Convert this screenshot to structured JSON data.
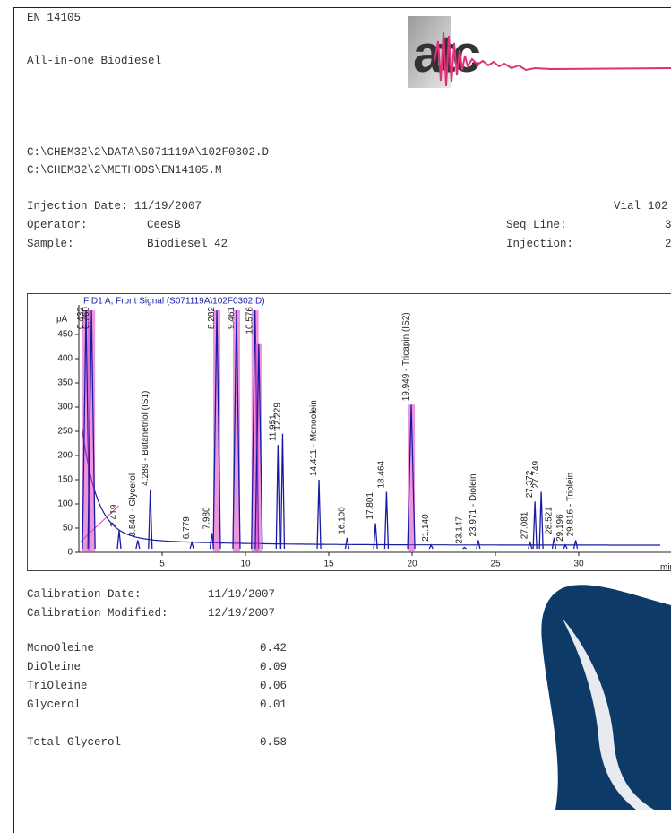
{
  "header": {
    "method": "EN 14105",
    "title": "All-in-one Biodiesel",
    "logo": "atc"
  },
  "files": [
    "C:\\CHEM32\\2\\DATA\\S071119A\\102F0302.D",
    "C:\\CHEM32\\2\\METHODS\\EN14105.M"
  ],
  "injection_info": {
    "left": [
      {
        "label": "Injection Date:",
        "value": "11/19/2007"
      },
      {
        "label": "Operator:",
        "value": "CeesB"
      },
      {
        "label": "Sample:",
        "value": "Biodiesel 42"
      }
    ],
    "right": [
      {
        "label": "Vial",
        "value": "102"
      },
      {
        "label": "Seq Line:",
        "value": "3"
      },
      {
        "label": "Injection:",
        "value": "2"
      }
    ]
  },
  "chromatogram": {
    "type": "chromatogram",
    "title": "FID1 A, Front Signal (S071119A\\102F0302.D)",
    "y_label": "pA",
    "x_label": "min",
    "color": "#1a1aa6",
    "xlim": [
      0,
      35
    ],
    "ylim": [
      0,
      500
    ],
    "xticks": [
      5,
      10,
      15,
      20,
      25,
      30
    ],
    "yticks": [
      0,
      50,
      100,
      150,
      200,
      250,
      300,
      350,
      400,
      450
    ],
    "peaks": [
      {
        "rt": 0.432,
        "height": 500,
        "label": "0.432"
      },
      {
        "rt": 0.76,
        "height": 500,
        "label": "0.760"
      },
      {
        "rt": 2.419,
        "height": 45,
        "label": "2.419"
      },
      {
        "rt": 3.54,
        "height": 25,
        "label": "3.540 - Glycerol"
      },
      {
        "rt": 4.289,
        "height": 130,
        "label": "4.289 - Butanetriol (IS1)"
      },
      {
        "rt": 6.779,
        "height": 20,
        "label": "6.779"
      },
      {
        "rt": 7.98,
        "height": 40,
        "label": "7.980"
      },
      {
        "rt": 8.282,
        "height": 500,
        "label": "8.282"
      },
      {
        "rt": 9.461,
        "height": 500,
        "label": "9.461"
      },
      {
        "rt": 10.576,
        "height": 500,
        "label": "10.576"
      },
      {
        "rt": 10.8,
        "height": 430,
        "label": null
      },
      {
        "rt": 11.951,
        "height": 222,
        "label": "11.951"
      },
      {
        "rt": 12.229,
        "height": 245,
        "label": "12.229"
      },
      {
        "rt": 14.411,
        "height": 150,
        "label": "14.411 - Monoolein"
      },
      {
        "rt": 16.1,
        "height": 30,
        "label": "16.100"
      },
      {
        "rt": 17.801,
        "height": 60,
        "label": "17.801"
      },
      {
        "rt": 18.464,
        "height": 125,
        "label": "18.464"
      },
      {
        "rt": 19.949,
        "height": 305,
        "label": "19.949 - Tricapin (IS2)"
      },
      {
        "rt": 21.14,
        "height": 15,
        "label": "21.140"
      },
      {
        "rt": 23.147,
        "height": 10,
        "label": "23.147"
      },
      {
        "rt": 23.971,
        "height": 25,
        "label": "23.971 - Diolein"
      },
      {
        "rt": 27.081,
        "height": 20,
        "label": "27.081"
      },
      {
        "rt": 27.372,
        "height": 105,
        "label": "27.372"
      },
      {
        "rt": 27.749,
        "height": 125,
        "label": "27.749"
      },
      {
        "rt": 28.521,
        "height": 30,
        "label": "28.521"
      },
      {
        "rt": 29.196,
        "height": 15,
        "label": "29.196"
      },
      {
        "rt": 29.816,
        "height": 25,
        "label": "29.816 - Triolein"
      }
    ]
  },
  "calibration": [
    {
      "label": "Calibration Date:",
      "value": "11/19/2007"
    },
    {
      "label": "Calibration Modified:",
      "value": "12/19/2007"
    }
  ],
  "results": [
    {
      "name": "MonoOleine",
      "value": 0.42
    },
    {
      "name": "DiOleine",
      "value": 0.09
    },
    {
      "name": "TriOleine",
      "value": 0.06
    },
    {
      "name": "Glycerol",
      "value": 0.01
    }
  ],
  "total": {
    "name": "Total Glycerol",
    "value": 0.58
  }
}
